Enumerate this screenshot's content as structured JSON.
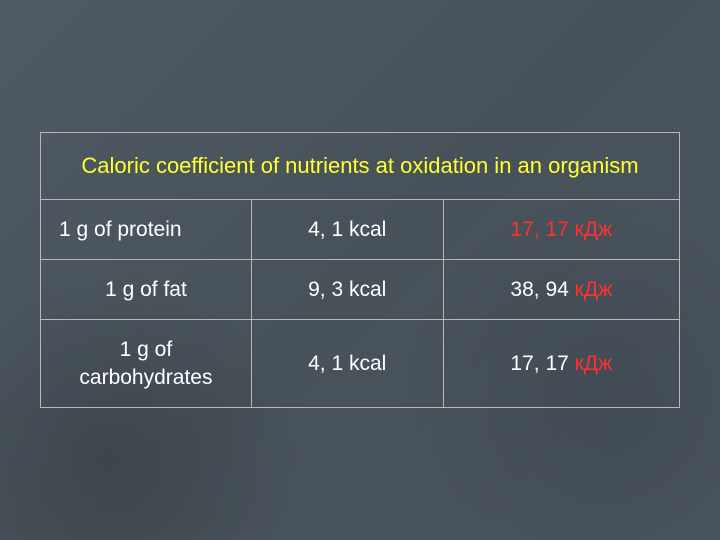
{
  "slide": {
    "background_color": "#4a5560",
    "border_color": "#b8b8b8",
    "title": "Caloric coefficient of nutrients at oxidation in an organism",
    "title_color": "#ffff33",
    "title_fontsize": 22,
    "cell_fontsize": 21,
    "text_color": "#ffffff",
    "accent_color": "#ff3030",
    "table": {
      "type": "table",
      "columns": [
        "nutrient",
        "kcal",
        "kJ"
      ],
      "column_widths_pct": [
        33,
        30,
        37
      ],
      "rows": [
        {
          "nutrient": "1 g of protein",
          "nutrient_align": "left",
          "kcal": "4, 1 kcal",
          "kj_value": "17, 17",
          "kj_unit": "кДж",
          "kj_value_red": true
        },
        {
          "nutrient": "1 g of fat",
          "nutrient_align": "center",
          "kcal": "9, 3 kcal",
          "kj_value": "38, 94",
          "kj_unit": "кДж",
          "kj_value_red": false
        },
        {
          "nutrient": "1 g of carbohydrates",
          "nutrient_align": "center",
          "kcal": "4, 1 kcal",
          "kj_value": "17, 17",
          "kj_unit": "кДж",
          "kj_value_red": false
        }
      ]
    }
  }
}
